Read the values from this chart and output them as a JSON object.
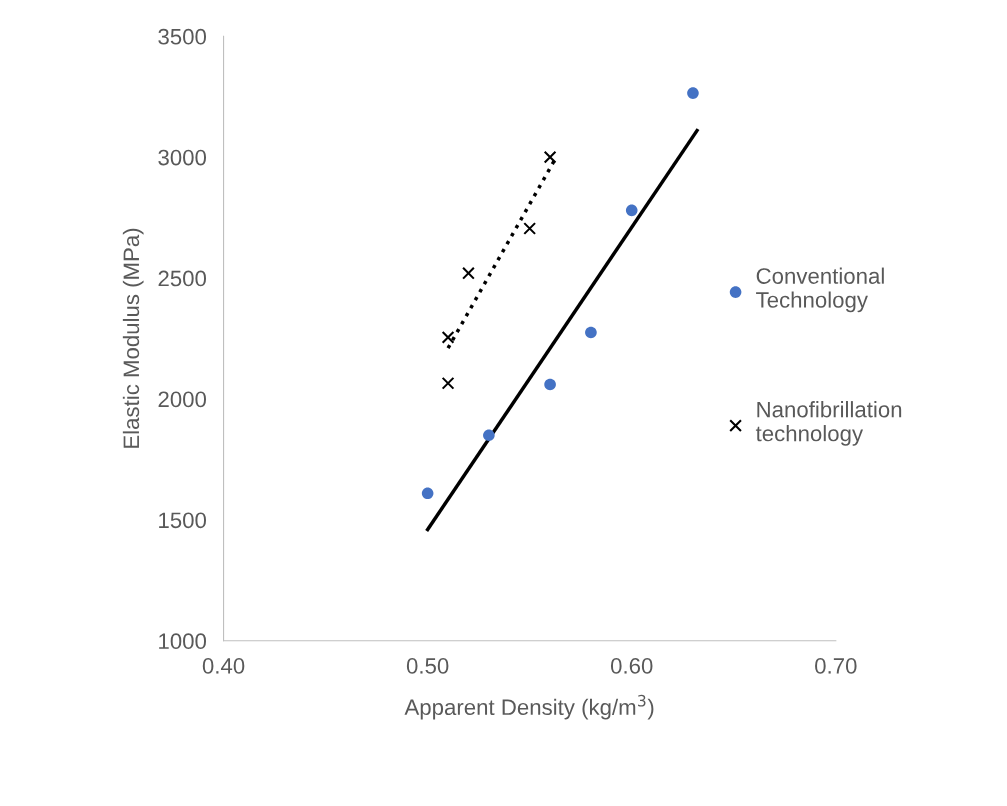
{
  "chart_data": {
    "type": "scatter",
    "xlabel": "Apparent Density (kg/m$^{3}$)",
    "ylabel": "Elastic Modulus (MPa)",
    "xlim": [
      0.4,
      0.7
    ],
    "xticks": [
      {
        "value": 0.4,
        "label": "0.40"
      },
      {
        "value": 0.5,
        "label": "0.50"
      },
      {
        "value": 0.6,
        "label": "0.60"
      },
      {
        "value": 0.7,
        "label": "0.70"
      }
    ],
    "ylim": [
      1000,
      3500
    ],
    "yticks": [
      1000,
      1500,
      2000,
      2500,
      3000,
      3500
    ],
    "grid": false,
    "legend": "right",
    "series": [
      {
        "name": "Conventional Technology",
        "marker": "circle",
        "color": "#4472c4",
        "x": [
          0.5,
          0.53,
          0.56,
          0.58,
          0.6,
          0.63
        ],
        "values": [
          1610,
          1850,
          2060,
          2275,
          2780,
          3265
        ]
      },
      {
        "name": "Nanofibrillation technology",
        "marker": "cross",
        "color": "#000000",
        "x": [
          0.51,
          0.51,
          0.52,
          0.55,
          0.56
        ],
        "values": [
          2065,
          2255,
          2520,
          2705,
          3000
        ]
      },
      {
        "type": "line",
        "marker": "none",
        "line_style": "solid",
        "color": "#000000",
        "x": [
          0.5,
          0.632
        ],
        "values": [
          1460,
          3110
        ]
      },
      {
        "type": "line",
        "marker": "none",
        "line_style": "dotted",
        "color": "#000000",
        "x": [
          0.51,
          0.563
        ],
        "values": [
          2210,
          3000
        ]
      }
    ]
  }
}
